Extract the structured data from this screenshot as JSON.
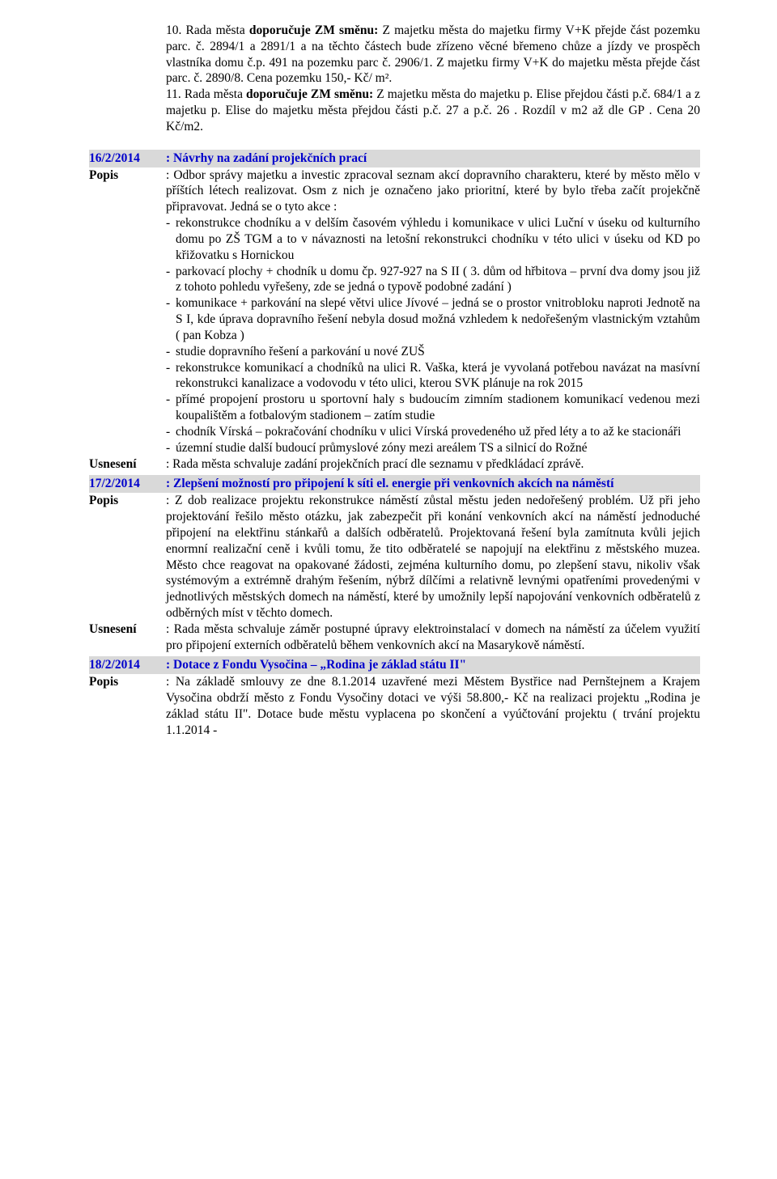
{
  "top": {
    "p10": "10. Rada města doporučuje ZM směnu: Z majetku města do majetku firmy V+K přejde část pozemku parc. č. 2894/1 a 2891/1 a na těchto částech bude zřízeno věcné břemeno chůze a jízdy ve prospěch vlastníka domu č.p. 491 na pozemku parc č. 2906/1. Z majetku firmy V+K do majetku města přejde část parc. č. 2890/8. Cena pozemku 150,- Kč/ m².",
    "p11": "11. Rada města doporučuje ZM směnu: Z majetku  města do majetku p. Elise přejdou  části  p.č.  684/1  a  z majetku p.  Elise do majetku města  přejdou části p.č. 27 a  p.č. 26 . Rozdíl v m2 až dle GP . Cena 20 Kč/m2."
  },
  "s16": {
    "id": "16/2/2014",
    "title": ": Návrhy na zadání projekčních prací",
    "popisLabel": "Popis",
    "usneseniLabel": "Usnesení",
    "popis1": ": Odbor správy majetku a investic zpracoval seznam  akcí dopravního charakteru, které by město  mělo  v příštích létech realizovat. Osm z nich je označeno  jako prioritní, které by bylo třeba začít projekčně připravovat. Jedná se o tyto akce :",
    "items": [
      "rekonstrukce chodníku a v delším časovém výhledu i komunikace v ulici Luční v úseku od kulturního domu po ZŠ TGM a to v návaznosti na letošní rekonstrukci chodníku v této ulici v úseku od KD po křižovatku s Hornickou",
      "parkovací plochy + chodník u domu čp. 927-927 na S II ( 3. dům od hřbitova – první dva domy jsou již z tohoto pohledu vyřešeny, zde se jedná o typově podobné zadání )",
      "komunikace + parkování na slepé větvi ulice Jívové – jedná se o prostor vnitrobloku naproti Jednotě na S I, kde úprava dopravního řešení nebyla dosud možná vzhledem k nedořešeným vlastnickým vztahům ( pan Kobza )",
      "studie dopravního řešení a parkování u nové ZUŠ",
      "rekonstrukce komunikací a chodníků na ulici R. Vaška, která je vyvolaná potřebou navázat na masívní rekonstrukci kanalizace a vodovodu v této ulici, kterou SVK plánuje na rok 2015",
      "přímé propojení prostoru u sportovní haly s budoucím zimním stadionem komunikací vedenou mezi koupalištěm a fotbalovým stadionem – zatím studie",
      "chodník Vírská – pokračování chodníku v ulici Vírská provedeného už před léty a to až ke stacionáři",
      "územní studie další budoucí průmyslové zóny mezi areálem TS a silnicí do Rožné"
    ],
    "usneseni": ": Rada města schvaluje zadání projekčních prací dle seznamu  v předkládací zprávě."
  },
  "s17": {
    "id": "17/2/2014",
    "title": ": Zlepšení možností pro připojení k síti el. energie při venkovních akcích na náměstí",
    "popisLabel": "Popis",
    "usneseniLabel": "Usnesení",
    "popis": ": Z dob realizace projektu rekonstrukce náměstí zůstal městu jeden nedořešený problém.  Už při jeho projektování řešilo město otázku, jak zabezpečit při konání venkovních akcí na náměstí jednoduché připojení na elektřinu stánkařů a dalších odběratelů. Projektovaná řešení byla zamítnuta kvůli jejich enormní realizační ceně i kvůli tomu, že tito odběratelé se napojují na elektřinu z městského muzea. Město chce  reagovat na opakované žádosti, zejména kulturního domu, po zlepšení stavu, nikoliv však systémovým a extrémně drahým řešením, nýbrž dílčími a relativně levnými opatřeními provedenými v jednotlivých městských  domech na náměstí, které by umožnily lepší napojování venkovních odběratelů z odběrných míst v těchto domech.",
    "usneseni": ": Rada města schvaluje záměr postupné úpravy elektroinstalací v domech na náměstí za účelem využití pro připojení externích odběratelů během venkovních akcí na Masarykově náměstí."
  },
  "s18": {
    "id": "18/2/2014",
    "title": ": Dotace z Fondu Vysočina – „Rodina je základ státu II\"",
    "popisLabel": "Popis",
    "popis": ": Na základě smlouvy ze dne 8.1.2014 uzavřené mezi Městem  Bystřice nad Pernštejnem a Krajem Vysočina obdrží  město z Fondu Vysočiny dotaci  ve výši 58.800,- Kč  na realizaci projektu „Rodina je základ státu II\". Dotace bude městu vyplacena  po  skončení  a  vyúčtování  projektu  (  trvání  projektu  1.1.2014 -"
  }
}
